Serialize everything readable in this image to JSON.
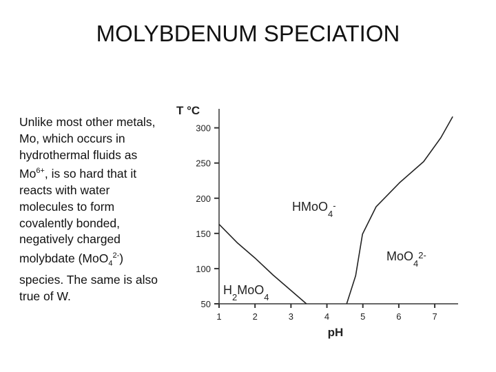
{
  "title": "MOLYBDENUM SPECIATION",
  "body": [
    "Unlike most other metals, Mo, which occurs in hydrothermal fluids as Mo",
    "6+",
    ", is so hard that it reacts with water molecules to form covalently bonded, negatively charged molybdate (MoO",
    "4",
    "2-",
    ") species. The same is also true of W."
  ],
  "chart_data": {
    "type": "line",
    "x_label": "pH",
    "y_label": "T °C",
    "xlim": [
      1,
      7.65
    ],
    "ylim": [
      50,
      327
    ],
    "xticks": [
      1,
      2,
      3,
      4,
      5,
      6,
      7
    ],
    "yticks": [
      50,
      100,
      150,
      200,
      250,
      300
    ],
    "color": "#222",
    "series": [
      {
        "x": [
          1,
          1.5,
          2,
          2.5,
          3,
          3.43
        ],
        "values": [
          163,
          137,
          115,
          91,
          69,
          50
        ]
      },
      {
        "x": [
          4.55,
          4.8,
          4.99,
          5.37,
          6.02,
          6.69,
          7.17,
          7.5
        ],
        "values": [
          50,
          90,
          149,
          188,
          222,
          252,
          286,
          316
        ]
      }
    ],
    "annotations": [
      [
        "HMoO",
        "4",
        "-"
      ],
      [
        "MoO",
        "4",
        "2-"
      ],
      [
        "H",
        "2",
        "MoO",
        "4"
      ]
    ]
  }
}
